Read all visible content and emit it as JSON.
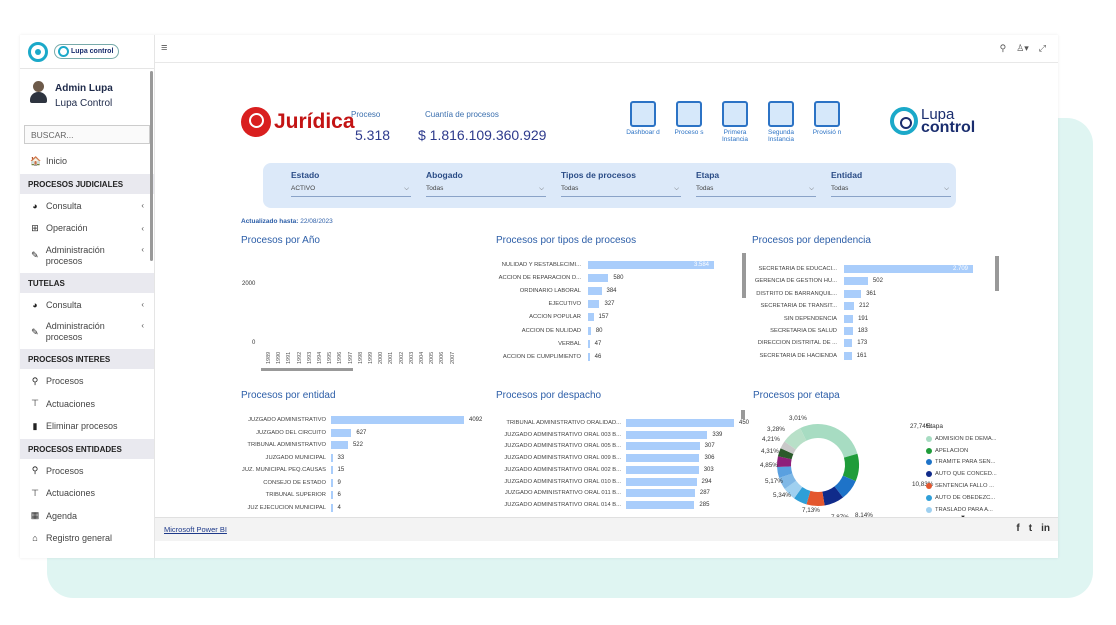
{
  "sidebar": {
    "user_name": "Admin Lupa",
    "user_org": "Lupa Control",
    "search_placeholder": "BUSCAR...",
    "logo_text": "Lupa control",
    "items": [
      {
        "type": "item",
        "icon": "home-icon",
        "glyph": "🏠",
        "label": "Inicio"
      },
      {
        "type": "head",
        "label": "PROCESOS JUDICIALES"
      },
      {
        "type": "item",
        "icon": "pie-chart-icon",
        "glyph": "◕",
        "label": "Consulta",
        "chev": "‹"
      },
      {
        "type": "item",
        "icon": "plus-square-icon",
        "glyph": "⊞",
        "label": "Operación",
        "chev": "‹"
      },
      {
        "type": "item2",
        "icon": "wrench-icon",
        "glyph": "✎",
        "label": "Administración procesos",
        "chev": "‹"
      },
      {
        "type": "head",
        "label": "TUTELAS"
      },
      {
        "type": "item",
        "icon": "pie-chart-icon",
        "glyph": "◕",
        "label": "Consulta",
        "chev": "‹"
      },
      {
        "type": "item2",
        "icon": "wrench-icon",
        "glyph": "✎",
        "label": "Administración procesos",
        "chev": "‹"
      },
      {
        "type": "head",
        "label": "PROCESOS INTERES"
      },
      {
        "type": "item",
        "icon": "search-icon",
        "glyph": "⚲",
        "label": "Procesos"
      },
      {
        "type": "item",
        "icon": "sitemap-icon",
        "glyph": "⊤",
        "label": "Actuaciones"
      },
      {
        "type": "item",
        "icon": "trash-icon",
        "glyph": "▮",
        "label": "Eliminar procesos"
      },
      {
        "type": "head",
        "label": "PROCESOS ENTIDADES"
      },
      {
        "type": "item",
        "icon": "search-icon",
        "glyph": "⚲",
        "label": "Procesos"
      },
      {
        "type": "item",
        "icon": "sitemap-icon",
        "glyph": "⊤",
        "label": "Actuaciones"
      },
      {
        "type": "item",
        "icon": "calendar-icon",
        "glyph": "▦",
        "label": "Agenda"
      },
      {
        "type": "item",
        "icon": "registry-icon",
        "glyph": "⌂",
        "label": "Registro general"
      }
    ]
  },
  "topbar": {
    "menu": "≡",
    "search": "⚲",
    "user": "♙▾",
    "expand": "⤢"
  },
  "report": {
    "brand": "Jurídica",
    "proceso_label": "Proceso",
    "proceso_value": "5.318",
    "cuantia_label": "Cuantía de procesos",
    "cuantia_value": "$ 1.816.109.360.929",
    "nav": [
      {
        "label": "Dashboar d"
      },
      {
        "label": "Proceso s"
      },
      {
        "label": "Primera Instancia"
      },
      {
        "label": "Segunda Instancia"
      },
      {
        "label": "Provisió n"
      }
    ],
    "lupa_brand_1": "Lupa",
    "lupa_brand_2": "control",
    "filters": [
      {
        "label": "Estado",
        "value": "ACTIVO"
      },
      {
        "label": "Abogado",
        "value": "Todas"
      },
      {
        "label": "Tipos de procesos",
        "value": "Todas"
      },
      {
        "label": "Etapa",
        "value": "Todas"
      },
      {
        "label": "Entidad",
        "value": "Todas"
      }
    ],
    "updated_label": "Actualizado hasta:",
    "updated_value": "22/08/2023"
  },
  "chart_data": [
    {
      "type": "bar",
      "title": "Procesos por Año",
      "ylim": [
        0,
        2000
      ],
      "yticks": [
        "2000",
        "0"
      ],
      "categories": [
        "1989",
        "1990",
        "1991",
        "1992",
        "1993",
        "1994",
        "1995",
        "1996",
        "1997",
        "1998",
        "1999",
        "2000",
        "2001",
        "2002",
        "2003",
        "2004",
        "2005",
        "2006",
        "2007"
      ]
    },
    {
      "type": "bar",
      "title": "Procesos por tipos de procesos",
      "categories": [
        "NULIDAD Y RESTABLECIMI...",
        "ACCION DE REPARACION D...",
        "ORDINARIO LABORAL",
        "EJECUTIVO",
        "ACCION POPULAR",
        "ACCION DE NULIDAD",
        "VERBAL",
        "ACCION DE CUMPLIMIENTO"
      ],
      "values": [
        3584,
        580,
        384,
        327,
        157,
        80,
        47,
        46
      ],
      "labels": [
        "3.584",
        "580",
        "384",
        "327",
        "157",
        "80",
        "47",
        "46"
      ]
    },
    {
      "type": "bar",
      "title": "Procesos por dependencia",
      "categories": [
        "SECRETARIA DE EDUCACI...",
        "GERENCIA DE GESTION HU...",
        "DISTRITO DE BARRANQUIL...",
        "SECRETARIA DE TRANSIT...",
        "SIN DEPENDENCIA",
        "SECRETARIA DE SALUD",
        "DIRECCION DISTRITAL DE ...",
        "SECRETARIA DE HACIENDA"
      ],
      "values": [
        2709,
        502,
        361,
        212,
        191,
        183,
        173,
        161
      ],
      "labels": [
        "2.709",
        "502",
        "361",
        "212",
        "191",
        "183",
        "173",
        "161"
      ]
    },
    {
      "type": "bar",
      "title": "Procesos por entidad",
      "categories": [
        "JUZGADO ADMINISTRATIVO",
        "JUZGADO DEL CIRCUITO",
        "TRIBUNAL ADMINISTRATIVO",
        "JUZGADO MUNICIPAL",
        "JUZ. MUNICIPAL PEQ.CAUSAS",
        "CONSEJO DE ESTADO",
        "TRIBUNAL SUPERIOR",
        "JUZ EJECUCION MUNICIPAL"
      ],
      "values": [
        4092,
        627,
        522,
        33,
        15,
        9,
        6,
        4
      ],
      "labels": [
        "4092",
        "627",
        "522",
        "33",
        "15",
        "9",
        "6",
        "4"
      ]
    },
    {
      "type": "bar",
      "title": "Procesos por despacho",
      "categories": [
        "TRIBUNAL ADMINISTRATIVO ORALIDAD...",
        "JUZGADO ADMINISTRATIVO ORAL 003 B...",
        "JUZGADO ADMINISTRATIVO ORAL 005 B...",
        "JUZGADO ADMINISTRATIVO ORAL 009 B...",
        "JUZGADO ADMINISTRATIVO ORAL 002 B...",
        "JUZGADO ADMINISTRATIVO ORAL 010 B...",
        "JUZGADO ADMINISTRATIVO ORAL 011 B...",
        "JUZGADO ADMINISTRATIVO ORAL 014 B..."
      ],
      "values": [
        450,
        339,
        307,
        306,
        303,
        294,
        287,
        285
      ],
      "labels": [
        "450",
        "339",
        "307",
        "306",
        "303",
        "294",
        "287",
        "285"
      ]
    },
    {
      "type": "pie",
      "title": "Procesos por etapa",
      "legend_title": "Etapa",
      "slices": [
        {
          "name": "ADMISION DE DEMA...",
          "value": 27.74,
          "label": "27,74%",
          "color": "#a7dcc2"
        },
        {
          "name": "APELACION",
          "value": 10.83,
          "label": "10,83%",
          "color": "#1f9c3a"
        },
        {
          "name": "TRAMITE PARA SEN...",
          "value": 8.14,
          "label": "8,14%",
          "color": "#1e73c8"
        },
        {
          "name": "AUTO QUE CONCED...",
          "value": 7.87,
          "label": "7,87%",
          "color": "#102b8a"
        },
        {
          "name": "SENTENCIA FALLO ...",
          "value": 7.13,
          "label": "7,13%",
          "color": "#e4572e"
        },
        {
          "name": "AUTO DE OBEDEZC...",
          "value": 5.34,
          "label": "5,34%",
          "color": "#2f9fd8"
        },
        {
          "name": "TRASLADO PARA A...",
          "value": 5.17,
          "label": "5,17%",
          "color": "#9fd0f0"
        },
        {
          "name": "",
          "value": 4.85,
          "label": "4,85%",
          "color": "#7fb8e6"
        },
        {
          "name": "",
          "value": 4.31,
          "label": "4,31%",
          "color": "#5aa0e0"
        },
        {
          "name": "",
          "value": 4.21,
          "label": "4,21%",
          "color": "#8e1f7a"
        },
        {
          "name": "",
          "value": 3.28,
          "label": "3,28%",
          "color": "#2b5a2b"
        },
        {
          "name": "",
          "value": 3.01,
          "label": "3,01%",
          "color": "#c9c9c9"
        },
        {
          "name": "",
          "value": 8.12,
          "label": "",
          "color": "#b8e0c8"
        }
      ]
    }
  ],
  "footer": {
    "powerbi": "Microsoft Power BI",
    "zoom": "11"
  }
}
